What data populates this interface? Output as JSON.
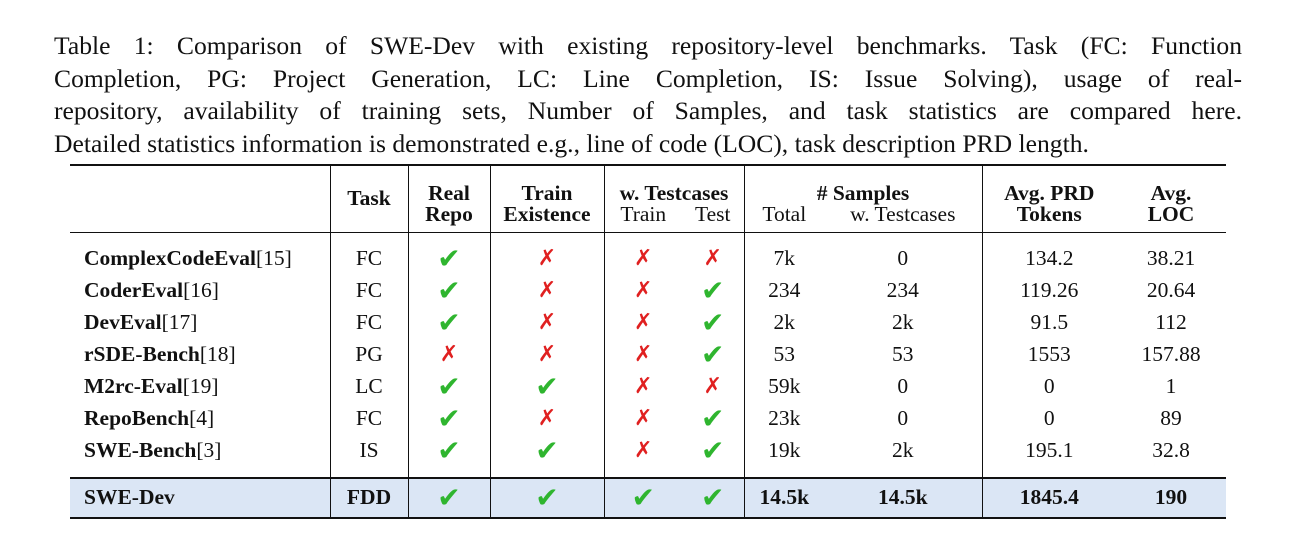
{
  "caption": {
    "lines": [
      "Table 1: Comparison of SWE-Dev with existing repository-level benchmarks. Task (FC: Function",
      "Completion, PG: Project Generation, LC: Line Completion, IS: Issue Solving), usage of real-",
      "repository, availability of training sets, Number of Samples, and task statistics are compared here.",
      "Detailed statistics information is demonstrated e.g., line of code (LOC), task description PRD length."
    ]
  },
  "header": {
    "task": "Task",
    "real_1": "Real",
    "real_2": "Repo",
    "train_1": "Train",
    "train_2": "Existence",
    "wtest": "w. Testcases",
    "wtest_train": "Train",
    "wtest_test": "Test",
    "samples": "# Samples",
    "samples_total": "Total",
    "samples_wtest": "w. Testcases",
    "prd_1": "Avg. PRD",
    "prd_2": "Tokens",
    "loc_1": "Avg.",
    "loc_2": "LOC"
  },
  "symbols": {
    "yes": "✔",
    "no": "✗",
    "yes_color": "#2fb52f",
    "no_color": "#e02020"
  },
  "rows": [
    {
      "name": "ComplexCodeEval",
      "ref": "[15]",
      "task": "FC",
      "real": "yes",
      "train": "no",
      "wt_train": "no",
      "wt_test": "no",
      "total": "7k",
      "wtest": "0",
      "prd": "134.2",
      "loc": "38.21"
    },
    {
      "name": "CoderEval",
      "ref": "[16]",
      "task": "FC",
      "real": "yes",
      "train": "no",
      "wt_train": "no",
      "wt_test": "yes",
      "total": "234",
      "wtest": "234",
      "prd": "119.26",
      "loc": "20.64"
    },
    {
      "name": "DevEval",
      "ref": "[17]",
      "task": "FC",
      "real": "yes",
      "train": "no",
      "wt_train": "no",
      "wt_test": "yes",
      "total": "2k",
      "wtest": "2k",
      "prd": "91.5",
      "loc": "112"
    },
    {
      "name": "rSDE-Bench",
      "ref": "[18]",
      "task": "PG",
      "real": "no",
      "train": "no",
      "wt_train": "no",
      "wt_test": "yes",
      "total": "53",
      "wtest": "53",
      "prd": "1553",
      "loc": "157.88"
    },
    {
      "name": "M2rc-Eval",
      "ref": "[19]",
      "task": "LC",
      "real": "yes",
      "train": "yes",
      "wt_train": "no",
      "wt_test": "no",
      "total": "59k",
      "wtest": "0",
      "prd": "0",
      "loc": "1"
    },
    {
      "name": "RepoBench",
      "ref": "[4]",
      "task": "FC",
      "real": "yes",
      "train": "no",
      "wt_train": "no",
      "wt_test": "yes",
      "total": "23k",
      "wtest": "0",
      "prd": "0",
      "loc": "89"
    },
    {
      "name": "SWE-Bench",
      "ref": "[3]",
      "task": "IS",
      "real": "yes",
      "train": "yes",
      "wt_train": "no",
      "wt_test": "yes",
      "total": "19k",
      "wtest": "2k",
      "prd": "195.1",
      "loc": "32.8"
    }
  ],
  "ours": {
    "name": "SWE-Dev",
    "task": "FDD",
    "real": "yes",
    "train": "yes",
    "wt_train": "yes",
    "wt_test": "yes",
    "total": "14.5k",
    "wtest": "14.5k",
    "prd": "1845.4",
    "loc": "190"
  }
}
